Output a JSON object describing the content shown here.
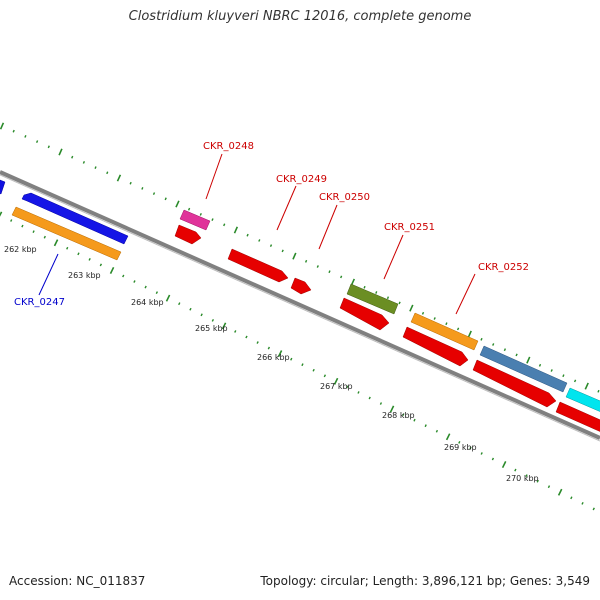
{
  "title": "Clostridium kluyveri NBRC 12016, complete genome",
  "footer": {
    "accession": "Accession: NC_011837",
    "summary": "Topology: circular; Length: 3,896,121 bp; Genes: 3,549"
  },
  "colors": {
    "backbone": "#808080",
    "tick": "#2a8a2a",
    "label_red": "#cc0000",
    "label_blue": "#0000cc"
  },
  "kbp_labels": [
    "262 kbp",
    "263 kbp",
    "264 kbp",
    "265 kbp",
    "266 kbp",
    "267 kbp",
    "268 kbp",
    "269 kbp",
    "270 kbp"
  ],
  "gene_labels": [
    {
      "text": "CKR_0248",
      "color": "#cc0000"
    },
    {
      "text": "CKR_0249",
      "color": "#cc0000"
    },
    {
      "text": "CKR_0250",
      "color": "#cc0000"
    },
    {
      "text": "CKR_0251",
      "color": "#cc0000"
    },
    {
      "text": "CKR_0252",
      "color": "#cc0000"
    },
    {
      "text": "CKR_0247",
      "color": "#0000cc"
    }
  ]
}
